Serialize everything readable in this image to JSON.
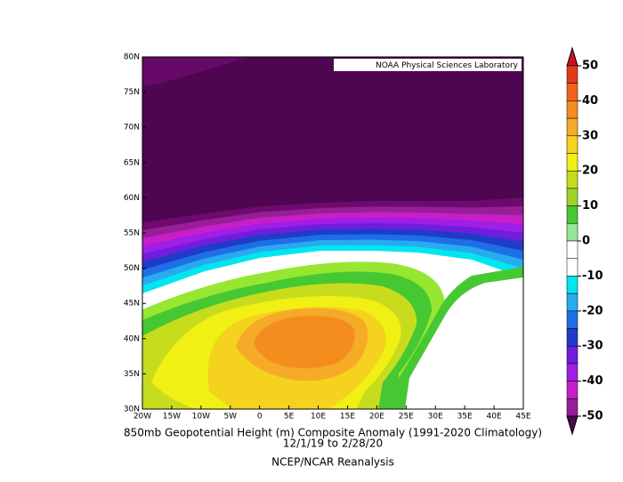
{
  "map": {
    "title": "850mb Geopotential Height (m) Composite Anomaly (1991-2020 Climatology)",
    "date_range": "12/1/19  to 2/28/20",
    "source": "NCEP/NCAR Reanalysis",
    "credit": "NOAA Physical Sciences Laboratory",
    "lon_ticks": [
      {
        "value": -20,
        "label": "20W"
      },
      {
        "value": -15,
        "label": "15W"
      },
      {
        "value": -10,
        "label": "10W"
      },
      {
        "value": -5,
        "label": "5W"
      },
      0,
      {
        "value": 5,
        "label": "5E"
      },
      {
        "value": 10,
        "label": "10E"
      },
      {
        "value": 15,
        "label": "15E"
      },
      {
        "value": 20,
        "label": "20E"
      },
      {
        "value": 25,
        "label": "25E"
      },
      {
        "value": 30,
        "label": "30E"
      },
      {
        "value": 35,
        "label": "35E"
      },
      {
        "value": 40,
        "label": "40E"
      },
      {
        "value": 45,
        "label": "45E"
      }
    ],
    "lat_ticks": [
      {
        "value": 30,
        "label": "30N"
      },
      {
        "value": 35,
        "label": "35N"
      },
      {
        "value": 40,
        "label": "40N"
      },
      {
        "value": 45,
        "label": "45N"
      },
      {
        "value": 50,
        "label": "50N"
      },
      {
        "value": 55,
        "label": "55N"
      },
      {
        "value": 60,
        "label": "60N"
      },
      {
        "value": 65,
        "label": "65N"
      },
      {
        "value": 70,
        "label": "70N"
      },
      {
        "value": 75,
        "label": "75N"
      },
      {
        "value": 80,
        "label": "80N"
      }
    ],
    "colorbar": {
      "ticks": [
        50,
        40,
        30,
        20,
        10,
        0,
        -10,
        -20,
        -30,
        -40,
        -50
      ]
    }
  }
}
